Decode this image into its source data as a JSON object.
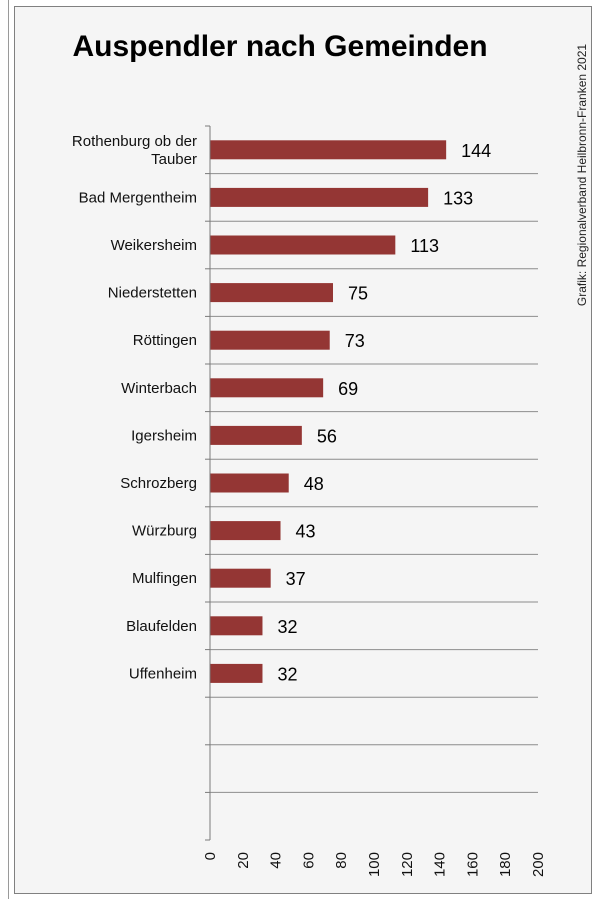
{
  "chart_data": {
    "type": "bar",
    "orientation": "horizontal",
    "title": "Auspendler nach Gemeinden",
    "credit": "Grafik: Regionalverband Heilbronn-Franken 2021",
    "categories": [
      "Rothenburg ob der Tauber",
      "Bad Mergentheim",
      "Weikersheim",
      "Niederstetten",
      "Röttingen",
      "Winterbach",
      "Igersheim",
      "Schrozberg",
      "Würzburg",
      "Mulfingen",
      "Blaufelden",
      "Uffenheim"
    ],
    "category_lines": [
      [
        "Rothenburg ob der",
        "Tauber"
      ],
      [
        "Bad Mergentheim"
      ],
      [
        "Weikersheim"
      ],
      [
        "Niederstetten"
      ],
      [
        "Röttingen"
      ],
      [
        "Winterbach"
      ],
      [
        "Igersheim"
      ],
      [
        "Schrozberg"
      ],
      [
        "Würzburg"
      ],
      [
        "Mulfingen"
      ],
      [
        "Blaufelden"
      ],
      [
        "Uffenheim"
      ]
    ],
    "values": [
      144,
      133,
      113,
      75,
      73,
      69,
      56,
      48,
      43,
      37,
      32,
      32
    ],
    "value_labels": [
      "144",
      "133",
      "113",
      "75",
      "73",
      "69",
      "56",
      "48",
      "43",
      "37",
      "32",
      "32"
    ],
    "xlim": [
      0,
      200
    ],
    "xticks": [
      0,
      20,
      40,
      60,
      80,
      100,
      120,
      140,
      160,
      180,
      200
    ],
    "xtick_labels": [
      "0",
      "20",
      "40",
      "60",
      "80",
      "100",
      "120",
      "140",
      "160",
      "180",
      "200"
    ],
    "grid": "horizontal",
    "bar_color": "#943634",
    "xlabel": "",
    "ylabel": ""
  }
}
